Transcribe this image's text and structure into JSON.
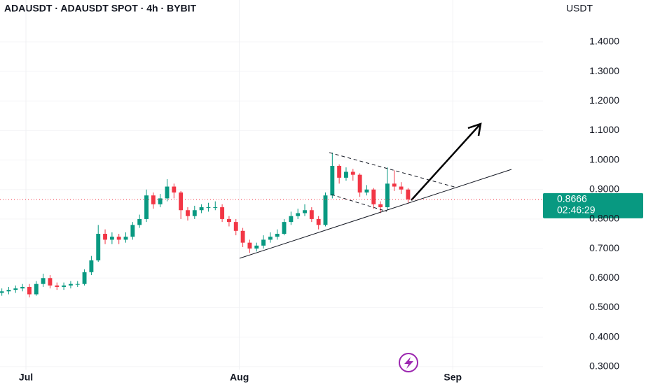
{
  "chart_data": {
    "type": "candlestick",
    "title": "ADAUSDT · ADAUSDT SPOT · 4h · BYBIT",
    "unit": "USDT",
    "x": [
      -3.5,
      -2.5,
      -1.5,
      -0.5,
      0.5,
      1.5,
      2.5,
      3.5,
      4.5,
      5.5,
      6.5,
      7.5,
      8.5,
      9.5,
      10.5,
      11.5,
      12.5,
      13.5,
      14.5,
      15.5,
      16.5,
      17.5,
      18.5,
      19.5,
      20.5,
      21.5,
      22.5,
      23.5,
      24.5,
      25.5,
      26.5,
      27.5,
      28.5,
      29.5,
      30.5,
      31.5,
      32.5,
      33.5,
      34.5,
      35.5,
      36.5,
      37.5,
      38.5,
      39.5,
      40.5,
      41.5,
      42.5,
      43.5,
      44.5,
      45.5,
      46.5,
      47.5,
      48.5,
      49.5,
      50.5,
      51.5,
      52.5,
      53.5,
      54.5,
      55.5
    ],
    "open": [
      0.55,
      0.555,
      0.56,
      0.565,
      0.57,
      0.545,
      0.58,
      0.6,
      0.575,
      0.57,
      0.575,
      0.58,
      0.58,
      0.62,
      0.66,
      0.75,
      0.73,
      0.74,
      0.73,
      0.74,
      0.78,
      0.8,
      0.88,
      0.85,
      0.87,
      0.91,
      0.89,
      0.83,
      0.81,
      0.83,
      0.84,
      0.84,
      0.84,
      0.8,
      0.79,
      0.76,
      0.72,
      0.7,
      0.71,
      0.73,
      0.74,
      0.75,
      0.79,
      0.81,
      0.82,
      0.83,
      0.8,
      0.78,
      0.88,
      0.98,
      0.94,
      0.96,
      0.95,
      0.89,
      0.9,
      0.85,
      0.84,
      0.92,
      0.91,
      0.9
    ],
    "high": [
      0.565,
      0.57,
      0.575,
      0.58,
      0.58,
      0.59,
      0.615,
      0.61,
      0.585,
      0.585,
      0.59,
      0.59,
      0.63,
      0.675,
      0.78,
      0.765,
      0.755,
      0.75,
      0.755,
      0.79,
      0.815,
      0.9,
      0.89,
      0.885,
      0.935,
      0.92,
      0.895,
      0.84,
      0.845,
      0.85,
      0.855,
      0.86,
      0.85,
      0.81,
      0.8,
      0.77,
      0.73,
      0.72,
      0.745,
      0.755,
      0.765,
      0.8,
      0.825,
      0.835,
      0.85,
      0.84,
      0.81,
      0.89,
      1.025,
      0.985,
      0.975,
      0.97,
      0.955,
      0.915,
      0.905,
      0.86,
      0.975,
      0.965,
      0.925,
      0.905
    ],
    "low": [
      0.54,
      0.545,
      0.55,
      0.555,
      0.535,
      0.54,
      0.57,
      0.565,
      0.56,
      0.56,
      0.565,
      0.57,
      0.575,
      0.61,
      0.655,
      0.715,
      0.715,
      0.715,
      0.72,
      0.73,
      0.77,
      0.79,
      0.835,
      0.84,
      0.86,
      0.87,
      0.8,
      0.795,
      0.8,
      0.82,
      0.825,
      0.83,
      0.79,
      0.775,
      0.745,
      0.705,
      0.685,
      0.69,
      0.7,
      0.72,
      0.73,
      0.745,
      0.78,
      0.8,
      0.81,
      0.79,
      0.765,
      0.775,
      0.87,
      0.92,
      0.93,
      0.93,
      0.875,
      0.88,
      0.835,
      0.82,
      0.83,
      0.895,
      0.885,
      0.855
    ],
    "close": [
      0.555,
      0.56,
      0.565,
      0.57,
      0.545,
      0.58,
      0.6,
      0.575,
      0.57,
      0.575,
      0.58,
      0.58,
      0.62,
      0.66,
      0.75,
      0.73,
      0.74,
      0.73,
      0.74,
      0.78,
      0.8,
      0.88,
      0.85,
      0.87,
      0.91,
      0.89,
      0.83,
      0.81,
      0.83,
      0.84,
      0.84,
      0.84,
      0.8,
      0.79,
      0.76,
      0.72,
      0.7,
      0.71,
      0.73,
      0.74,
      0.75,
      0.79,
      0.81,
      0.82,
      0.83,
      0.8,
      0.78,
      0.88,
      0.98,
      0.94,
      0.96,
      0.95,
      0.89,
      0.9,
      0.85,
      0.84,
      0.92,
      0.91,
      0.9,
      0.8666
    ],
    "up_color": "#089981",
    "down_color": "#f23645",
    "last_price": 0.8666,
    "countdown": "02:46:29",
    "xlim": [
      -3.77,
      75.1
    ],
    "xticks": [
      {
        "value": 0,
        "label": "Jul"
      },
      {
        "value": 31,
        "label": "Aug"
      },
      {
        "value": 62,
        "label": "Sep"
      }
    ],
    "ylim": [
      0.29,
      1.542
    ],
    "yticks": [
      {
        "value": 0.3,
        "label": "0.3000"
      },
      {
        "value": 0.4,
        "label": "0.4000"
      },
      {
        "value": 0.5,
        "label": "0.5000"
      },
      {
        "value": 0.6,
        "label": "0.6000"
      },
      {
        "value": 0.7,
        "label": "0.7000"
      },
      {
        "value": 0.8,
        "label": "0.8000"
      },
      {
        "value": 0.9,
        "label": "0.9000"
      },
      {
        "value": 1.0,
        "label": "1.0000"
      },
      {
        "value": 1.1,
        "label": "1.1000"
      },
      {
        "value": 1.2,
        "label": "1.2000"
      },
      {
        "value": 1.3,
        "label": "1.3000"
      },
      {
        "value": 1.4,
        "label": "1.4000"
      }
    ],
    "grid": true
  }
}
